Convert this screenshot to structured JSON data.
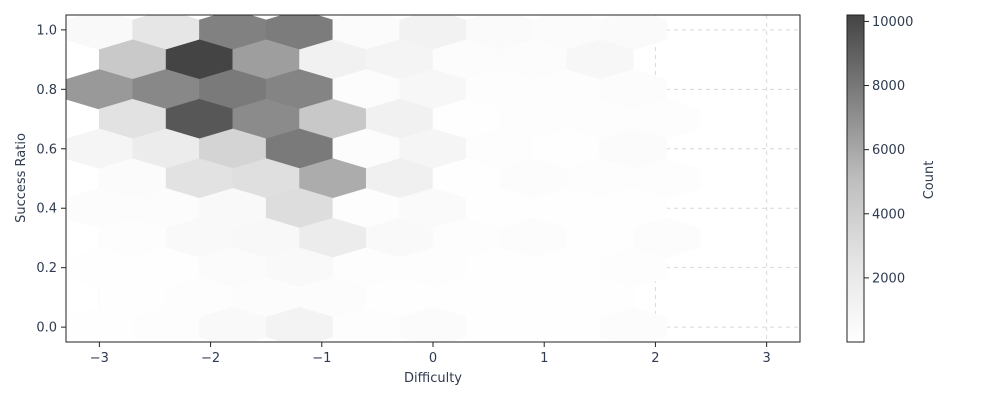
{
  "chart_data": {
    "type": "hexbin",
    "title": "",
    "xlabel": "Difficulty",
    "ylabel": "Success Ratio",
    "xlim": [
      -3.3,
      3.3
    ],
    "ylim": [
      -0.05,
      1.05
    ],
    "x_ticks": [
      -3,
      -2,
      -1,
      0,
      1,
      2,
      3
    ],
    "x_tick_labels": [
      "−3",
      "−2",
      "−1",
      "0",
      "1",
      "2",
      "3"
    ],
    "y_ticks": [
      0.0,
      0.2,
      0.4,
      0.6,
      0.8,
      1.0
    ],
    "y_tick_labels": [
      "0.0",
      "0.2",
      "0.4",
      "0.6",
      "0.8",
      "1.0"
    ],
    "grid": true,
    "colormap": "Greys",
    "colorbar": {
      "label": "Count",
      "range": [
        0,
        10200
      ],
      "ticks": [
        2000,
        4000,
        6000,
        8000,
        10000
      ],
      "tick_labels": [
        "2000",
        "4000",
        "6000",
        "8000",
        "10000"
      ]
    },
    "hex_spacing": {
      "dx": 0.6,
      "dy": 0.1
    },
    "bins": [
      {
        "x": -3.0,
        "y": 1.0,
        "count": 600
      },
      {
        "x": -2.4,
        "y": 1.0,
        "count": 2400
      },
      {
        "x": -1.8,
        "y": 1.0,
        "count": 7600
      },
      {
        "x": -1.2,
        "y": 1.0,
        "count": 7800
      },
      {
        "x": -0.6,
        "y": 1.0,
        "count": 400
      },
      {
        "x": 0.0,
        "y": 1.0,
        "count": 1200
      },
      {
        "x": 0.6,
        "y": 1.0,
        "count": 500
      },
      {
        "x": 1.2,
        "y": 1.0,
        "count": 400
      },
      {
        "x": 1.8,
        "y": 1.0,
        "count": 500
      },
      {
        "x": -2.7,
        "y": 0.9,
        "count": 4300
      },
      {
        "x": -2.1,
        "y": 0.9,
        "count": 10200
      },
      {
        "x": -1.5,
        "y": 0.9,
        "count": 6400
      },
      {
        "x": -0.9,
        "y": 0.9,
        "count": 1300
      },
      {
        "x": -0.3,
        "y": 0.9,
        "count": 1000
      },
      {
        "x": 0.3,
        "y": 0.9,
        "count": 300
      },
      {
        "x": 0.9,
        "y": 0.9,
        "count": 300
      },
      {
        "x": 1.5,
        "y": 0.9,
        "count": 800
      },
      {
        "x": -3.0,
        "y": 0.8,
        "count": 6600
      },
      {
        "x": -2.4,
        "y": 0.8,
        "count": 7300
      },
      {
        "x": -1.8,
        "y": 0.8,
        "count": 7900
      },
      {
        "x": -1.2,
        "y": 0.8,
        "count": 7500
      },
      {
        "x": -0.6,
        "y": 0.8,
        "count": 300
      },
      {
        "x": 0.0,
        "y": 0.8,
        "count": 800
      },
      {
        "x": 0.6,
        "y": 0.8,
        "count": 200
      },
      {
        "x": 1.2,
        "y": 0.8,
        "count": 200
      },
      {
        "x": 1.8,
        "y": 0.8,
        "count": 300
      },
      {
        "x": -2.7,
        "y": 0.7,
        "count": 2700
      },
      {
        "x": -2.1,
        "y": 0.7,
        "count": 9400
      },
      {
        "x": -1.5,
        "y": 0.7,
        "count": 7200
      },
      {
        "x": -0.9,
        "y": 0.7,
        "count": 4400
      },
      {
        "x": -0.3,
        "y": 0.7,
        "count": 1300
      },
      {
        "x": 0.3,
        "y": 0.7,
        "count": 100
      },
      {
        "x": 0.9,
        "y": 0.7,
        "count": 200
      },
      {
        "x": 1.5,
        "y": 0.7,
        "count": 200
      },
      {
        "x": 2.1,
        "y": 0.7,
        "count": 200
      },
      {
        "x": -3.0,
        "y": 0.6,
        "count": 900
      },
      {
        "x": -2.4,
        "y": 0.6,
        "count": 1800
      },
      {
        "x": -1.8,
        "y": 0.6,
        "count": 3600
      },
      {
        "x": -1.2,
        "y": 0.6,
        "count": 7900
      },
      {
        "x": -0.6,
        "y": 0.6,
        "count": 300
      },
      {
        "x": 0.0,
        "y": 0.6,
        "count": 900
      },
      {
        "x": 0.6,
        "y": 0.6,
        "count": 200
      },
      {
        "x": 1.2,
        "y": 0.6,
        "count": 100
      },
      {
        "x": 1.8,
        "y": 0.6,
        "count": 400
      },
      {
        "x": -2.7,
        "y": 0.5,
        "count": 400
      },
      {
        "x": -2.1,
        "y": 0.5,
        "count": 2700
      },
      {
        "x": -1.5,
        "y": 0.5,
        "count": 2900
      },
      {
        "x": -0.9,
        "y": 0.5,
        "count": 5800
      },
      {
        "x": -0.3,
        "y": 0.5,
        "count": 1400
      },
      {
        "x": 0.3,
        "y": 0.5,
        "count": 100
      },
      {
        "x": 0.9,
        "y": 0.5,
        "count": 300
      },
      {
        "x": 1.5,
        "y": 0.5,
        "count": 200
      },
      {
        "x": 2.1,
        "y": 0.5,
        "count": 200
      },
      {
        "x": -3.0,
        "y": 0.4,
        "count": 300
      },
      {
        "x": -2.4,
        "y": 0.4,
        "count": 300
      },
      {
        "x": -1.8,
        "y": 0.4,
        "count": 600
      },
      {
        "x": -1.2,
        "y": 0.4,
        "count": 3000
      },
      {
        "x": -0.6,
        "y": 0.4,
        "count": 200
      },
      {
        "x": 0.0,
        "y": 0.4,
        "count": 500
      },
      {
        "x": 0.6,
        "y": 0.4,
        "count": 100
      },
      {
        "x": 1.2,
        "y": 0.4,
        "count": 100
      },
      {
        "x": 1.8,
        "y": 0.4,
        "count": 100
      },
      {
        "x": -2.7,
        "y": 0.3,
        "count": 200
      },
      {
        "x": -2.1,
        "y": 0.3,
        "count": 600
      },
      {
        "x": -1.5,
        "y": 0.3,
        "count": 700
      },
      {
        "x": -0.9,
        "y": 0.3,
        "count": 1800
      },
      {
        "x": -0.3,
        "y": 0.3,
        "count": 600
      },
      {
        "x": 0.3,
        "y": 0.3,
        "count": 200
      },
      {
        "x": 0.9,
        "y": 0.3,
        "count": 300
      },
      {
        "x": 1.5,
        "y": 0.3,
        "count": 100
      },
      {
        "x": 2.1,
        "y": 0.3,
        "count": 300
      },
      {
        "x": -3.0,
        "y": 0.2,
        "count": 100
      },
      {
        "x": -2.4,
        "y": 0.2,
        "count": 100
      },
      {
        "x": -1.8,
        "y": 0.2,
        "count": 400
      },
      {
        "x": -1.2,
        "y": 0.2,
        "count": 600
      },
      {
        "x": -0.6,
        "y": 0.2,
        "count": 200
      },
      {
        "x": 0.0,
        "y": 0.2,
        "count": 200
      },
      {
        "x": 0.6,
        "y": 0.2,
        "count": 100
      },
      {
        "x": 1.2,
        "y": 0.2,
        "count": 100
      },
      {
        "x": 1.8,
        "y": 0.2,
        "count": 200
      },
      {
        "x": -2.7,
        "y": 0.1,
        "count": 100
      },
      {
        "x": -2.1,
        "y": 0.1,
        "count": 200
      },
      {
        "x": -1.5,
        "y": 0.1,
        "count": 300
      },
      {
        "x": -0.9,
        "y": 0.1,
        "count": 300
      },
      {
        "x": -0.3,
        "y": 0.1,
        "count": 50
      },
      {
        "x": 0.3,
        "y": 0.1,
        "count": 100
      },
      {
        "x": 0.9,
        "y": 0.1,
        "count": 100
      },
      {
        "x": 1.5,
        "y": 0.1,
        "count": 100
      },
      {
        "x": -3.0,
        "y": 0.0,
        "count": 100
      },
      {
        "x": -2.4,
        "y": 0.0,
        "count": 200
      },
      {
        "x": -1.8,
        "y": 0.0,
        "count": 600
      },
      {
        "x": -1.2,
        "y": 0.0,
        "count": 1100
      },
      {
        "x": -0.6,
        "y": 0.0,
        "count": 200
      },
      {
        "x": 0.0,
        "y": 0.0,
        "count": 400
      },
      {
        "x": 0.6,
        "y": 0.0,
        "count": 100
      },
      {
        "x": 1.2,
        "y": 0.0,
        "count": 100
      },
      {
        "x": 1.8,
        "y": 0.0,
        "count": 300
      }
    ]
  }
}
